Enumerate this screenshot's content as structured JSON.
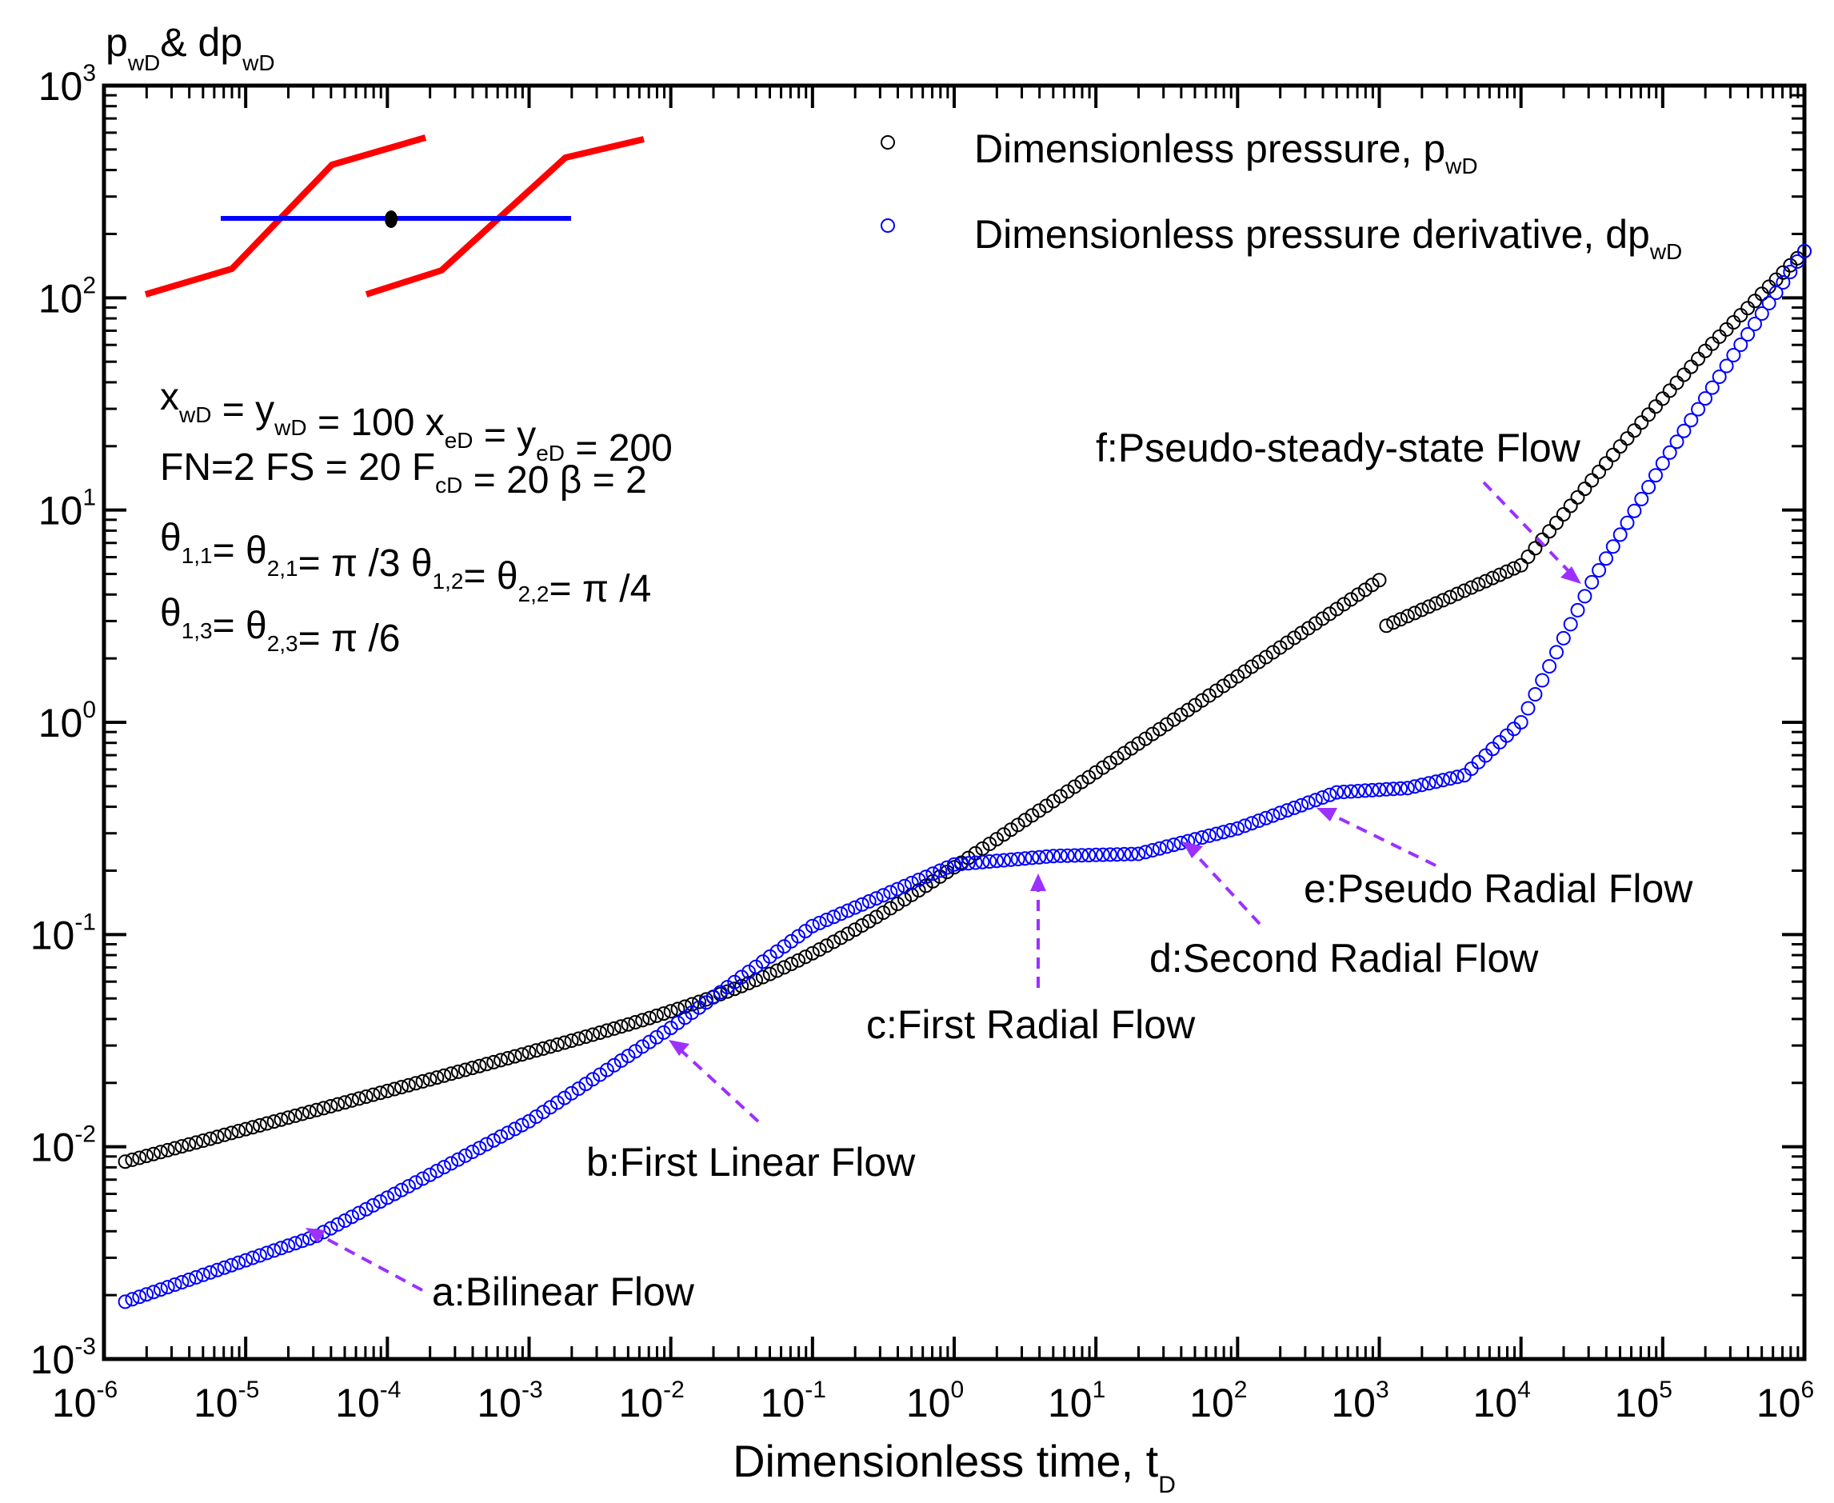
{
  "chart_data": {
    "type": "scatter",
    "title": "",
    "xlabel": "Dimensionless time, t",
    "xlabel_sub": "D",
    "ylabel": [
      "p",
      "wD",
      "& dp",
      "wD"
    ],
    "xscale": "log",
    "yscale": "log",
    "xlim": [
      1e-06,
      1000000.0
    ],
    "ylim": [
      0.001,
      1000.0
    ],
    "x_ticks": [
      {
        "base": "10",
        "exp": "-6",
        "value": -6
      },
      {
        "base": "10",
        "exp": "-5",
        "value": -5
      },
      {
        "base": "10",
        "exp": "-4",
        "value": -4
      },
      {
        "base": "10",
        "exp": "-3",
        "value": -3
      },
      {
        "base": "10",
        "exp": "-2",
        "value": -2
      },
      {
        "base": "10",
        "exp": "-1",
        "value": -1
      },
      {
        "base": "10",
        "exp": "0",
        "value": 0
      },
      {
        "base": "10",
        "exp": "1",
        "value": 1
      },
      {
        "base": "10",
        "exp": "2",
        "value": 2
      },
      {
        "base": "10",
        "exp": "3",
        "value": 3
      },
      {
        "base": "10",
        "exp": "4",
        "value": 4
      },
      {
        "base": "10",
        "exp": "5",
        "value": 5
      },
      {
        "base": "10",
        "exp": "6",
        "value": 6
      }
    ],
    "y_ticks": [
      {
        "base": "10",
        "exp": "-3",
        "value": -3
      },
      {
        "base": "10",
        "exp": "-2",
        "value": -2
      },
      {
        "base": "10",
        "exp": "-1",
        "value": -1
      },
      {
        "base": "10",
        "exp": "0",
        "value": 0
      },
      {
        "base": "10",
        "exp": "1",
        "value": 1
      },
      {
        "base": "10",
        "exp": "2",
        "value": 2
      },
      {
        "base": "10",
        "exp": "3",
        "value": 3
      }
    ],
    "series": [
      {
        "name": "Dimensionless pressure, p",
        "name_sub": "wD",
        "color": "#000000",
        "marker": "circle-open",
        "log_t": [
          -5.85,
          3.0,
          4.0,
          4.7,
          5.3,
          6.0
        ],
        "log_value": [
          -2.07,
          0.44,
          0.74,
          1.3,
          1.75,
          2.22
        ]
      },
      {
        "name": "Dimensionless pressure derivative, dp",
        "name_sub": "wD",
        "color": "#0000ff",
        "marker": "circle-open",
        "log_t": [
          -5.85,
          -4.5,
          -3.0,
          -2.0,
          -1.0,
          0.0,
          0.7,
          1.3,
          2.0,
          2.7,
          3.2,
          3.6,
          4.0,
          4.5,
          5.0,
          5.5,
          6.0
        ],
        "log_value": [
          -2.73,
          -2.42,
          -1.88,
          -1.44,
          -0.96,
          -0.67,
          -0.63,
          -0.62,
          -0.5,
          -0.33,
          -0.31,
          -0.25,
          0.0,
          0.66,
          1.22,
          1.73,
          2.22
        ]
      }
    ],
    "params": {
      "line1": [
        {
          "text": "x",
          "sub": "wD"
        },
        {
          "text": " = y",
          "sub": "wD"
        },
        {
          "text": " = 100   x",
          "sub": "eD"
        },
        {
          "text": " = y",
          "sub": "eD"
        },
        {
          "text": " = 200",
          "sub": ""
        }
      ],
      "line2": [
        {
          "text": "FN=2  FS = 20  F",
          "sub": "cD"
        },
        {
          "text": " = 20  β = 2",
          "sub": ""
        }
      ],
      "line3": [
        {
          "text": "θ",
          "sub": "1,1"
        },
        {
          "text": "= θ",
          "sub": "2,1"
        },
        {
          "text": "= π /3    θ",
          "sub": "1,2"
        },
        {
          "text": "= θ",
          "sub": "2,2"
        },
        {
          "text": "= π /4",
          "sub": ""
        }
      ],
      "line4": [
        {
          "text": "θ",
          "sub": "1,3"
        },
        {
          "text": "= θ",
          "sub": "2,3"
        },
        {
          "text": "= π /6",
          "sub": ""
        }
      ]
    },
    "annotations": [
      {
        "label": "a:Bilinear Flow",
        "target_log_t": -4.55,
        "target_log_value": -2.38,
        "arrow_color": "#9b30ff"
      },
      {
        "label": "b:First Linear Flow",
        "target_log_t": -2.02,
        "target_log_value": -1.46,
        "arrow_color": "#9b30ff"
      },
      {
        "label": "c:First Radial Flow",
        "target_log_t": 0.7,
        "target_log_value": -0.62,
        "arrow_color": "#9b30ff"
      },
      {
        "label": "d:Second Radial Flow",
        "target_log_t": 1.7,
        "target_log_value": -0.53,
        "arrow_color": "#9b30ff"
      },
      {
        "label": "e:Pseudo Radial Flow",
        "target_log_t": 2.67,
        "target_log_value": -0.38,
        "arrow_color": "#9b30ff"
      },
      {
        "label": "f:Pseudo-steady-state Flow",
        "target_log_t": 4.55,
        "target_log_value": 0.69,
        "arrow_color": "#9b30ff"
      }
    ],
    "inset": {
      "fracture_color": "#ff0000",
      "well_color": "#0000ff",
      "point_color": "#000000"
    },
    "legend_position": "top-right"
  }
}
